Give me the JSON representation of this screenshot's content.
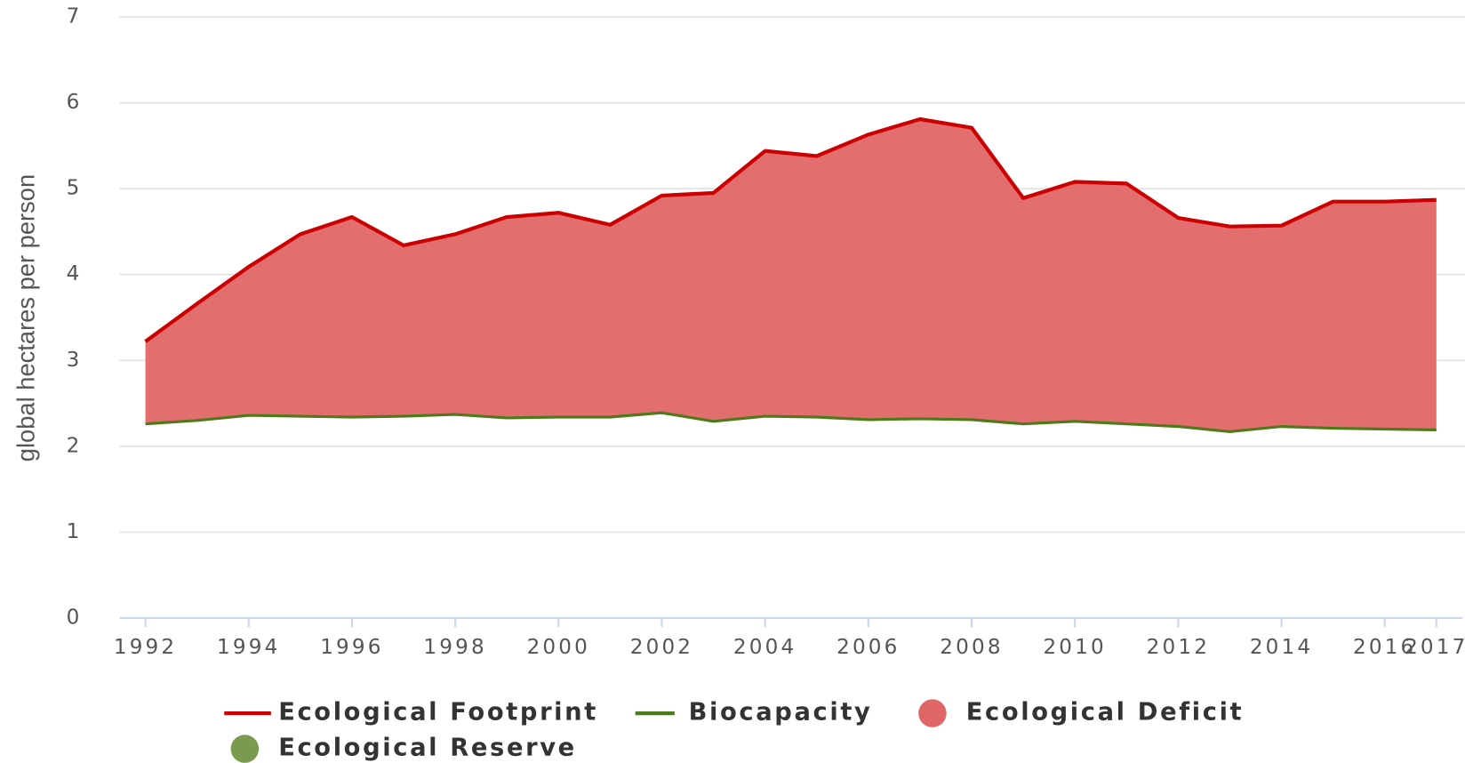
{
  "chart_data": {
    "type": "line",
    "y_axis_label": "global hectares per person",
    "x": [
      1992,
      1993,
      1994,
      1995,
      1996,
      1997,
      1998,
      1999,
      2000,
      2001,
      2002,
      2003,
      2004,
      2005,
      2006,
      2007,
      2008,
      2009,
      2010,
      2011,
      2012,
      2013,
      2014,
      2015,
      2016,
      2017
    ],
    "series": [
      {
        "name": "Ecological Footprint",
        "color": "#cc0000",
        "values": [
          3.22,
          3.66,
          4.09,
          4.47,
          4.67,
          4.34,
          4.47,
          4.67,
          4.72,
          4.58,
          4.92,
          4.95,
          5.44,
          5.38,
          5.63,
          5.81,
          5.71,
          4.89,
          5.08,
          5.06,
          4.66,
          4.56,
          4.57,
          4.85,
          4.85,
          4.87
        ]
      },
      {
        "name": "Biocapacity",
        "color": "#4d7a1a",
        "values": [
          2.26,
          2.3,
          2.36,
          2.35,
          2.34,
          2.35,
          2.37,
          2.33,
          2.34,
          2.34,
          2.39,
          2.29,
          2.35,
          2.34,
          2.31,
          2.32,
          2.31,
          2.26,
          2.29,
          2.26,
          2.23,
          2.17,
          2.23,
          2.21,
          2.2,
          2.19
        ]
      },
      {
        "name": "Ecological Deficit",
        "color": "#e06666"
      },
      {
        "name": "Ecological Reserve",
        "color": "#7a9a50"
      }
    ],
    "xlim": [
      1991.5,
      2017.5
    ],
    "xticks": [
      1992,
      1994,
      1996,
      1998,
      2000,
      2002,
      2004,
      2006,
      2008,
      2010,
      2012,
      2014,
      2016,
      2017
    ],
    "ylim": [
      0,
      7
    ],
    "yticks": [
      0,
      1,
      2,
      3,
      4,
      5,
      6,
      7
    ],
    "grid": true,
    "legend": "bottom"
  }
}
